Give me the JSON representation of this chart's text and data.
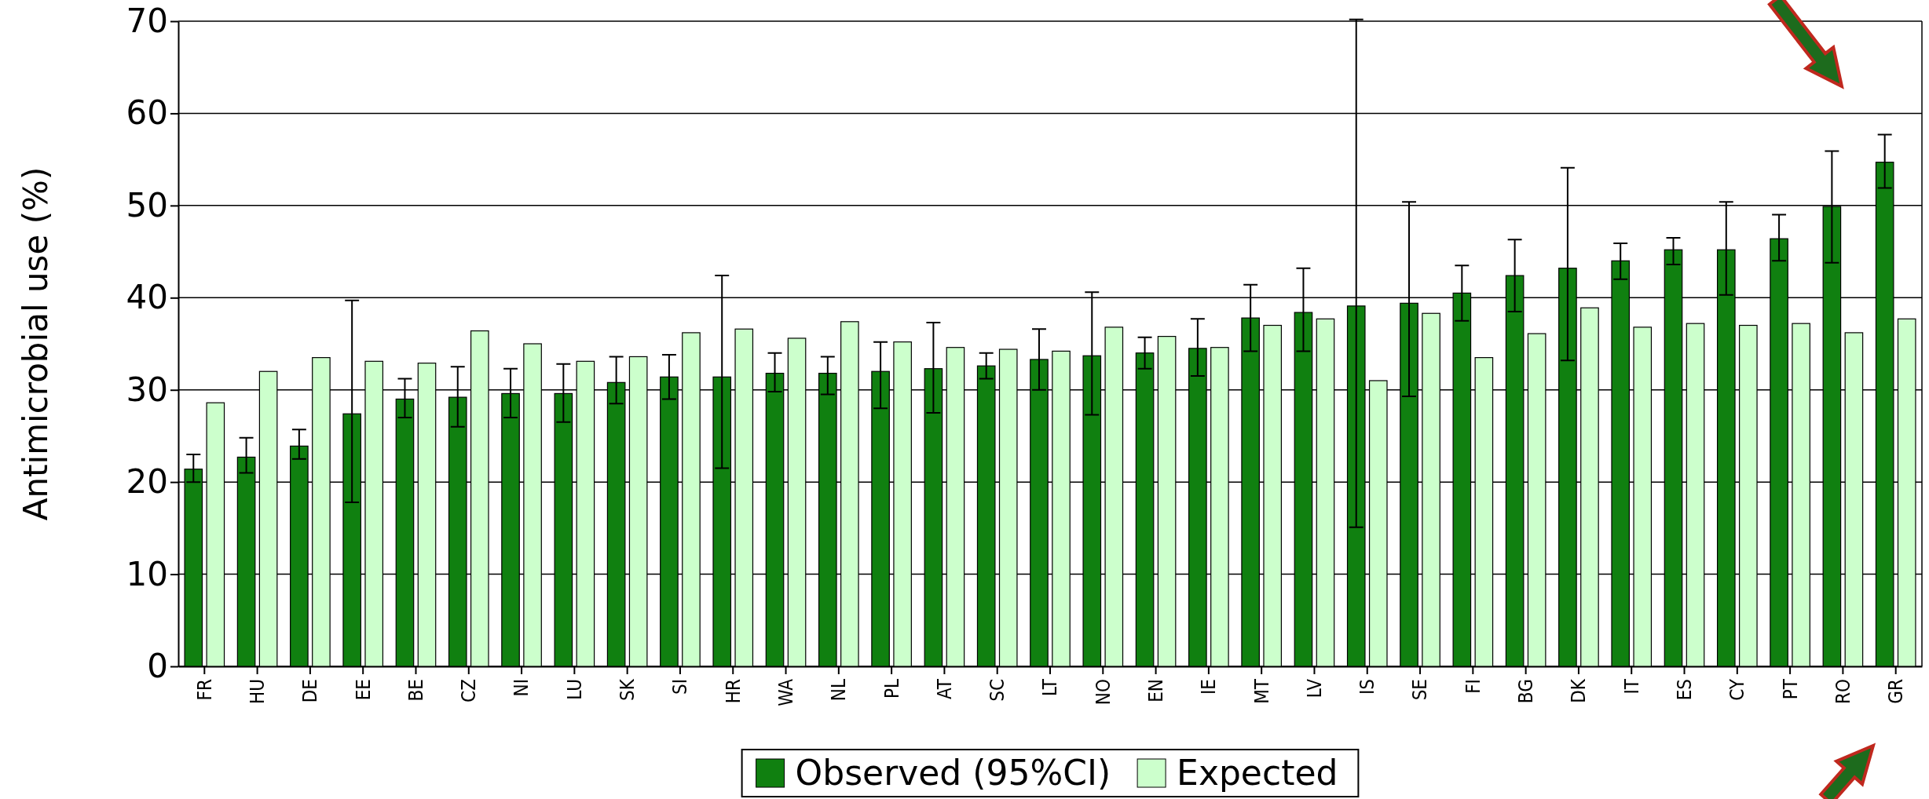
{
  "chart_data": {
    "type": "bar",
    "ylabel": "Antimicrobial use (%)",
    "categories": [
      "FR",
      "HU",
      "DE",
      "EE",
      "BE",
      "CZ",
      "NI",
      "LU",
      "SK",
      "SI",
      "HR",
      "WA",
      "NL",
      "PL",
      "AT",
      "SC",
      "LT",
      "NO",
      "EN",
      "IE",
      "MT",
      "LV",
      "IS",
      "SE",
      "FI",
      "BG",
      "DK",
      "IT",
      "ES",
      "CY",
      "PT",
      "RO",
      "GR"
    ],
    "series": [
      {
        "name": "Observed (95%CI)",
        "color": "#108010",
        "values": [
          21.4,
          22.7,
          23.9,
          27.4,
          29,
          29.2,
          29.6,
          29.6,
          30.8,
          31.4,
          31.4,
          31.8,
          31.8,
          32,
          32.3,
          32.6,
          33.3,
          33.7,
          34,
          34.5,
          37.8,
          38.4,
          39.1,
          39.4,
          40.5,
          42.4,
          43.2,
          44,
          45.2,
          45.2,
          46.4,
          49.9,
          54.7
        ],
        "errors": [
          [
            20,
            23
          ],
          [
            21,
            24.8
          ],
          [
            22.5,
            25.7
          ],
          [
            17.8,
            39.7
          ],
          [
            27,
            31.2
          ],
          [
            26,
            32.5
          ],
          [
            27,
            32.3
          ],
          [
            26.5,
            32.8
          ],
          [
            28.5,
            33.6
          ],
          [
            29,
            33.8
          ],
          [
            21.5,
            42.4
          ],
          [
            29.8,
            34
          ],
          [
            29.5,
            33.6
          ],
          [
            28,
            35.2
          ],
          [
            27.5,
            37.3
          ],
          [
            31.2,
            34
          ],
          [
            30,
            36.6
          ],
          [
            27.3,
            40.6
          ],
          [
            32.3,
            35.7
          ],
          [
            31.5,
            37.7
          ],
          [
            34.2,
            41.4
          ],
          [
            34.2,
            43.2
          ],
          [
            15.1,
            70.2
          ],
          [
            29.3,
            50.4
          ],
          [
            37.5,
            43.5
          ],
          [
            38.5,
            46.3
          ],
          [
            33.2,
            54.1
          ],
          [
            42,
            45.9
          ],
          [
            43.6,
            46.5
          ],
          [
            40.3,
            50.4
          ],
          [
            44,
            49
          ],
          [
            43.8,
            55.9
          ],
          [
            51.9,
            57.7
          ]
        ]
      },
      {
        "name": "Expected",
        "color": "#ccffcc",
        "values": [
          28.6,
          32,
          33.5,
          33.1,
          32.9,
          36.4,
          35,
          33.1,
          33.6,
          36.2,
          36.6,
          35.6,
          37.4,
          35.2,
          34.6,
          34.4,
          34.2,
          36.8,
          35.8,
          34.6,
          37,
          37.7,
          31,
          38.3,
          33.5,
          36.1,
          38.9,
          36.8,
          37.2,
          37,
          37.2,
          36.2,
          37.7
        ]
      }
    ],
    "ylim": [
      0,
      70
    ],
    "yticks": [
      0,
      10,
      20,
      30,
      40,
      50,
      60,
      70
    ],
    "grid": "y",
    "legend": "bottom"
  }
}
